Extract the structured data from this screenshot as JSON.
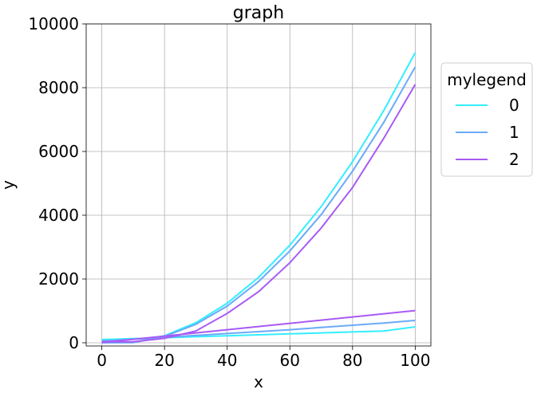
{
  "chart_data": {
    "type": "line",
    "title": "graph",
    "xlabel": "x",
    "ylabel": "y",
    "xlim": [
      -5,
      105
    ],
    "ylim": [
      -100,
      10000
    ],
    "xticks": [
      0,
      20,
      40,
      60,
      80,
      100
    ],
    "yticks": [
      0,
      2000,
      4000,
      6000,
      8000,
      10000
    ],
    "grid": true,
    "legend": {
      "title": "mylegend",
      "placement": "outside-right",
      "entries": [
        "0",
        "1",
        "2"
      ]
    },
    "x": [
      0,
      10,
      20,
      30,
      40,
      50,
      60,
      70,
      80,
      90,
      100
    ],
    "series": [
      {
        "name": "0",
        "color": "#33eeff",
        "curves": [
          [
            0,
            10,
            220,
            630,
            1240,
            2050,
            3060,
            4270,
            5680,
            7290,
            9100
          ],
          [
            100,
            130,
            160,
            190,
            220,
            250,
            280,
            310,
            340,
            370,
            500
          ]
        ]
      },
      {
        "name": "1",
        "color": "#6aaaf8",
        "curves": [
          [
            0,
            5,
            200,
            580,
            1150,
            1920,
            2880,
            4020,
            5380,
            6920,
            8650
          ],
          [
            60,
            110,
            170,
            230,
            290,
            350,
            410,
            480,
            550,
            620,
            700
          ]
        ]
      },
      {
        "name": "2",
        "color": "#a85af5",
        "curves": [
          [
            30,
            30,
            140,
            370,
            920,
            1600,
            2510,
            3600,
            4870,
            6420,
            8100
          ],
          [
            10,
            110,
            210,
            310,
            410,
            510,
            610,
            710,
            810,
            910,
            1010
          ]
        ]
      }
    ]
  }
}
